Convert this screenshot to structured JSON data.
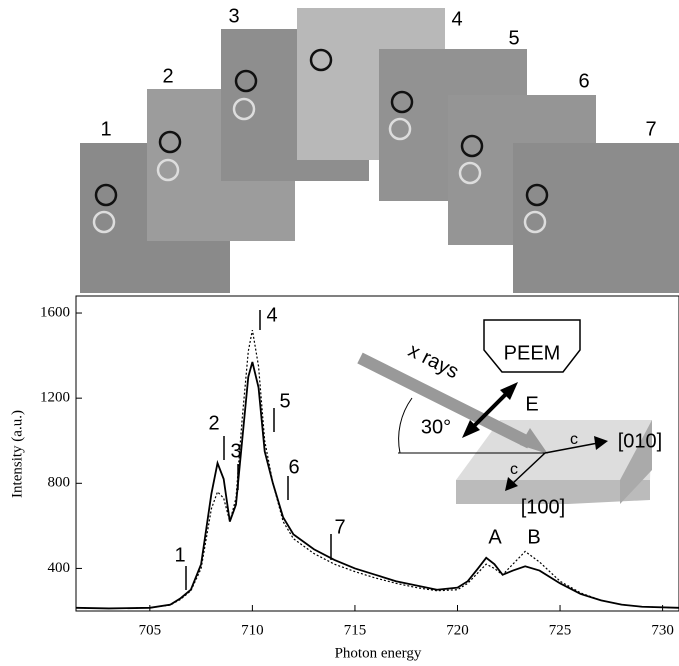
{
  "mosaic": {
    "labels": [
      "1",
      "2",
      "3",
      "4",
      "5",
      "6",
      "7"
    ]
  },
  "schematic": {
    "detector": "PEEM",
    "beam": "x rays",
    "field": "E",
    "angle": "30°",
    "axis_a": "c",
    "dir_a": "[010]",
    "axis_b": "c",
    "dir_b": "[100]"
  },
  "chart_data": {
    "type": "line",
    "x_label": "Photon energy",
    "y_label": "Intensity (a.u.)",
    "annotations": [
      "1",
      "2",
      "3",
      "4",
      "5",
      "6",
      "7",
      "A",
      "B"
    ],
    "x": [
      701.4,
      703,
      705,
      706,
      706.5,
      707,
      707.5,
      708,
      708.3,
      708.6,
      708.9,
      709.2,
      709.5,
      709.8,
      710,
      710.3,
      710.6,
      711,
      711.5,
      712,
      713,
      714,
      715,
      716,
      717,
      718,
      719,
      720,
      720.5,
      721,
      721.4,
      721.8,
      722.2,
      722.7,
      723.3,
      724,
      725,
      726,
      727,
      728,
      729,
      730.8
    ],
    "series": [
      {
        "color": "#000000",
        "dash": "solid",
        "values": [
          215,
          212,
          215,
          230,
          260,
          300,
          420,
          750,
          895,
          820,
          620,
          700,
          1000,
          1300,
          1370,
          1250,
          950,
          800,
          640,
          560,
          490,
          440,
          400,
          370,
          340,
          320,
          300,
          310,
          340,
          400,
          450,
          420,
          370,
          390,
          410,
          390,
          330,
          280,
          250,
          230,
          220,
          215
        ]
      },
      {
        "color": "#000000",
        "dash": "dotted",
        "values": [
          215,
          212,
          215,
          228,
          255,
          295,
          400,
          680,
          760,
          730,
          620,
          730,
          1100,
          1420,
          1520,
          1350,
          1000,
          800,
          620,
          540,
          470,
          420,
          385,
          355,
          330,
          310,
          295,
          300,
          330,
          380,
          420,
          400,
          370,
          420,
          480,
          430,
          340,
          285,
          250,
          230,
          220,
          215
        ]
      }
    ],
    "xlim": [
      701.4,
      730.8
    ],
    "ylim": [
      200,
      1680
    ],
    "xticks": [
      705,
      710,
      715,
      720,
      725,
      730
    ],
    "yticks": [
      400,
      800,
      1200,
      1600
    ]
  }
}
